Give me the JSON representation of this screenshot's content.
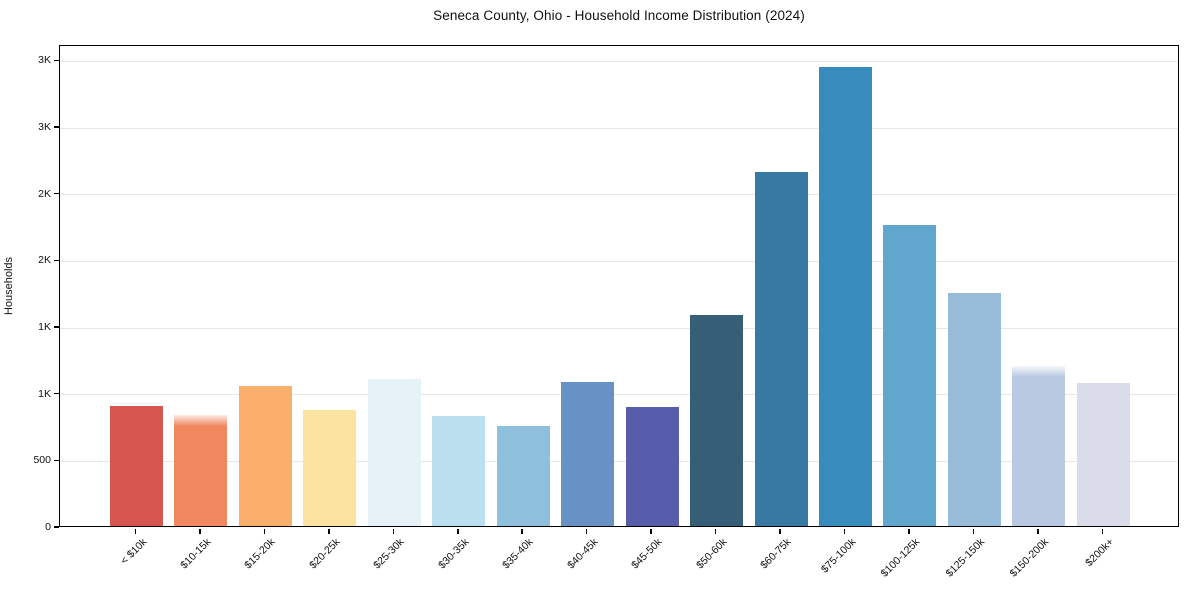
{
  "chart_data": {
    "type": "bar",
    "title": "Seneca County, Ohio - Household Income Distribution (2024)",
    "xlabel": "",
    "ylabel": "Households",
    "categories": [
      "< $10k",
      "$10-15k",
      "$15-20k",
      "$20-25k",
      "$25-30k",
      "$30-35k",
      "$35-40k",
      "$40-45k",
      "$45-50k",
      "$50-60k",
      "$60-75k",
      "$75-100k",
      "$100-125k",
      "$125-150k",
      "$150-200k",
      "$200k+"
    ],
    "values": [
      900,
      835,
      1050,
      870,
      1100,
      825,
      750,
      1080,
      890,
      1585,
      2655,
      3445,
      2260,
      1745,
      1200,
      1075
    ],
    "bar_colors": [
      "#d5564e",
      "#f0875f",
      "#f9ae6b",
      "#fce3a0",
      "#e6f2f7",
      "#badfee",
      "#8ec0de",
      "#6892c6",
      "#575cab",
      "#375e77",
      "#3779a3",
      "#388bbd",
      "#61a7cd",
      "#96bcda",
      "#b9c9e2",
      "#dadcea"
    ],
    "soft_top_indices": [
      1,
      14
    ],
    "ylim": [
      0,
      3615
    ],
    "yticks": [
      {
        "value": 0,
        "label": "0"
      },
      {
        "value": 500,
        "label": "500"
      },
      {
        "value": 1000,
        "label": "1K"
      },
      {
        "value": 1500,
        "label": "1K"
      },
      {
        "value": 2000,
        "label": "2K"
      },
      {
        "value": 2500,
        "label": "2K"
      },
      {
        "value": 3000,
        "label": "3K"
      },
      {
        "value": 3500,
        "label": "3K"
      }
    ],
    "grid": true,
    "legend_position": "none",
    "background_color": "#ffffff",
    "gridline_color": "#e7e7e7",
    "spine_color": "#000000"
  }
}
